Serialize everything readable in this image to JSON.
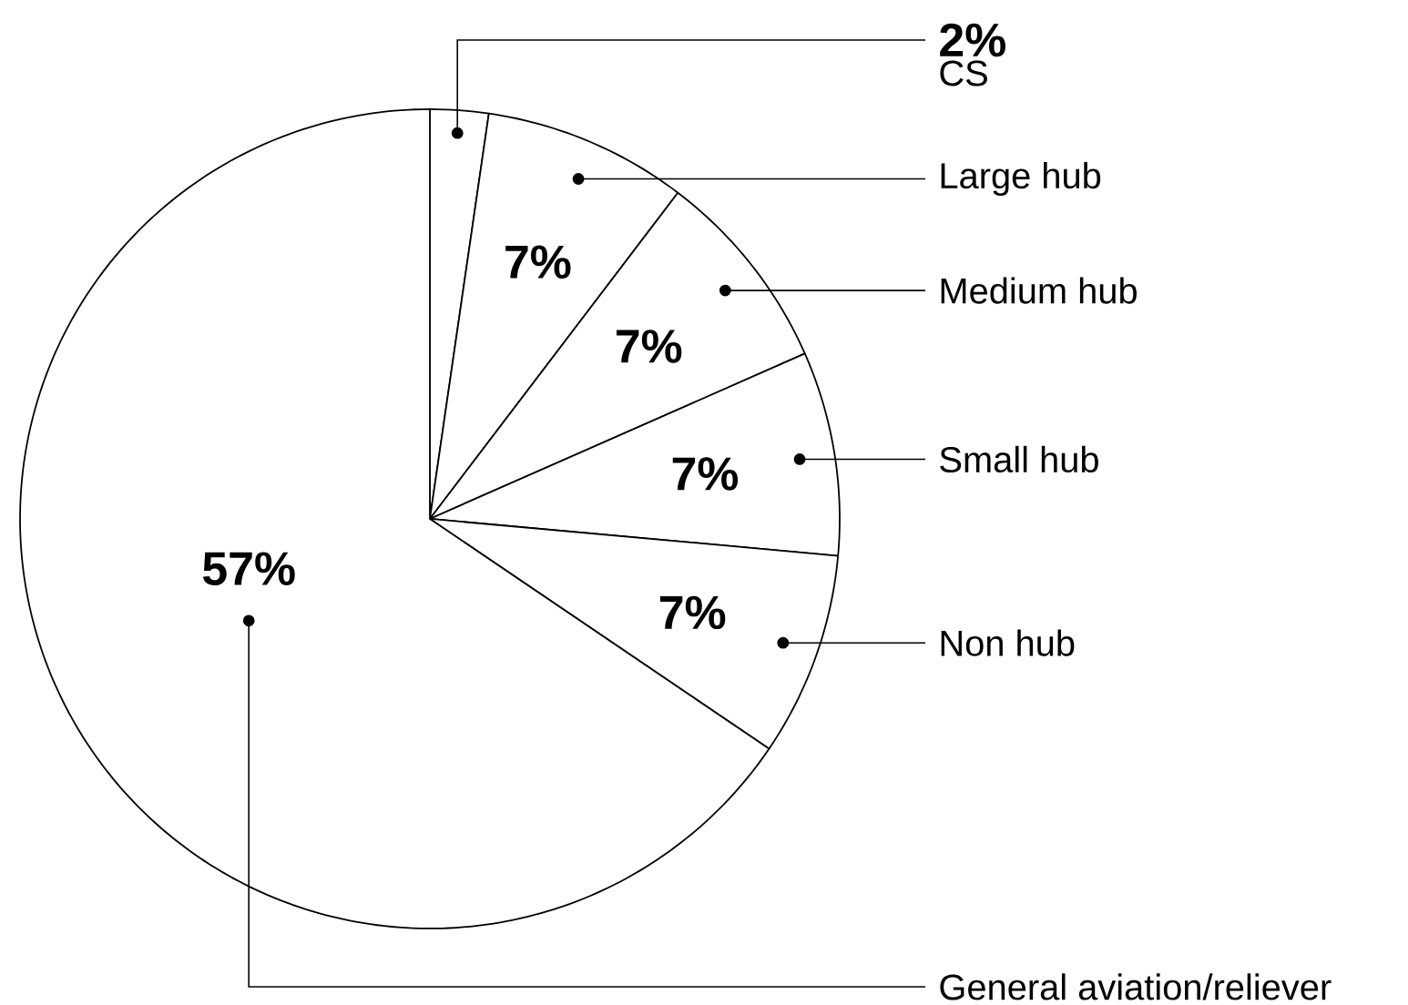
{
  "chart_data": {
    "type": "pie",
    "categories": [
      "CS",
      "Large hub",
      "Medium hub",
      "Small hub",
      "Non hub",
      "General aviation/reliever"
    ],
    "values": [
      2,
      7,
      7,
      7,
      7,
      57
    ],
    "value_labels": [
      "2%",
      "7%",
      "7%",
      "7%",
      "7%",
      "57%"
    ],
    "colors": [
      "#ffffff",
      "#ffffff",
      "#ffffff",
      "#ffffff",
      "#ffffff",
      "#ffffff"
    ]
  }
}
